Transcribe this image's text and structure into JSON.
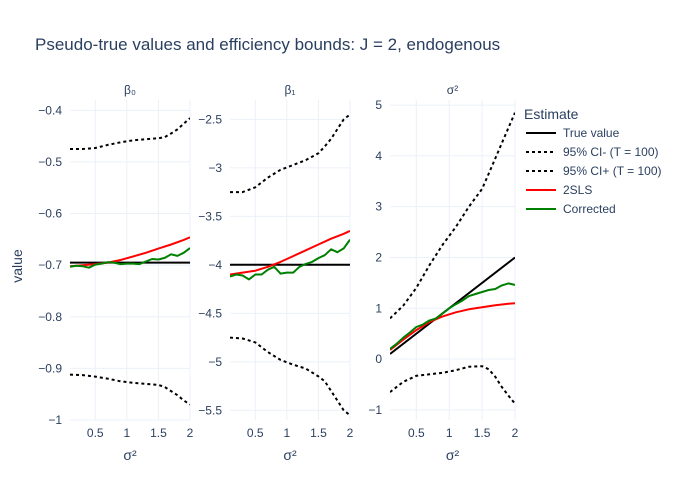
{
  "chart_data": {
    "type": "line",
    "title": "Pseudo-true values and efficiency bounds: J = 2, endogenous",
    "ylabel": "value",
    "legend": {
      "title": "Estimate",
      "placement": "right",
      "entries": [
        {
          "name": "True value",
          "color": "#000000",
          "dash": "solid"
        },
        {
          "name": "95% CI- (T = 100)",
          "color": "#000000",
          "dash": "dot"
        },
        {
          "name": "95% CI+ (T = 100)",
          "color": "#000000",
          "dash": "dot"
        },
        {
          "name": "2SLS",
          "color": "#ff0000",
          "dash": "solid"
        },
        {
          "name": "Corrected",
          "color": "#008000",
          "dash": "solid"
        }
      ]
    },
    "panels": [
      {
        "subtitle": "β₀",
        "xlabel": "σ²",
        "xlim": [
          0.1,
          2
        ],
        "ylim": [
          -1.0,
          -0.38
        ],
        "xticks": [
          0.5,
          1,
          1.5,
          2
        ],
        "xticklabels": [
          "0.5",
          "1",
          "1.5",
          "2"
        ],
        "yticks": [
          -1,
          -0.9,
          -0.8,
          -0.7,
          -0.6,
          -0.5,
          -0.4
        ],
        "yticklabels": [
          "−1",
          "−0.9",
          "−0.8",
          "−0.7",
          "−0.6",
          "−0.5",
          "−0.4"
        ],
        "series": [
          {
            "name": "True value",
            "x": [
              0.1,
              2
            ],
            "y": [
              -0.695,
              -0.695
            ]
          },
          {
            "name": "95% CI- (T = 100)",
            "x": [
              0.1,
              0.3,
              0.5,
              0.7,
              0.9,
              1.1,
              1.3,
              1.5,
              1.6,
              1.7,
              1.8,
              1.9,
              2.0
            ],
            "y": [
              -0.475,
              -0.475,
              -0.473,
              -0.467,
              -0.462,
              -0.458,
              -0.456,
              -0.454,
              -0.452,
              -0.445,
              -0.437,
              -0.426,
              -0.415
            ]
          },
          {
            "name": "95% CI+ (T = 100)",
            "x": [
              0.1,
              0.3,
              0.5,
              0.7,
              0.9,
              1.1,
              1.3,
              1.5,
              1.6,
              1.7,
              1.8,
              1.9,
              2.0
            ],
            "y": [
              -0.912,
              -0.913,
              -0.916,
              -0.92,
              -0.925,
              -0.928,
              -0.93,
              -0.932,
              -0.936,
              -0.944,
              -0.952,
              -0.962,
              -0.97
            ]
          },
          {
            "name": "2SLS",
            "x": [
              0.1,
              0.3,
              0.5,
              0.7,
              0.9,
              1.1,
              1.3,
              1.5,
              1.7,
              1.9,
              2.0
            ],
            "y": [
              -0.702,
              -0.7,
              -0.698,
              -0.695,
              -0.69,
              -0.683,
              -0.676,
              -0.668,
              -0.66,
              -0.651,
              -0.646
            ]
          },
          {
            "name": "Corrected",
            "x": [
              0.1,
              0.2,
              0.3,
              0.4,
              0.5,
              0.6,
              0.7,
              0.8,
              0.9,
              1.0,
              1.1,
              1.2,
              1.3,
              1.4,
              1.5,
              1.6,
              1.7,
              1.8,
              1.9,
              2.0
            ],
            "y": [
              -0.703,
              -0.701,
              -0.702,
              -0.705,
              -0.699,
              -0.697,
              -0.694,
              -0.695,
              -0.698,
              -0.697,
              -0.697,
              -0.698,
              -0.693,
              -0.688,
              -0.689,
              -0.686,
              -0.679,
              -0.682,
              -0.676,
              -0.667
            ]
          }
        ]
      },
      {
        "subtitle": "β₁",
        "xlabel": "σ²",
        "xlim": [
          0.1,
          2
        ],
        "ylim": [
          -5.6,
          -2.3
        ],
        "xticks": [
          0.5,
          1,
          1.5,
          2
        ],
        "xticklabels": [
          "0.5",
          "1",
          "1.5",
          "2"
        ],
        "yticks": [
          -5.5,
          -5,
          -4.5,
          -4,
          -3.5,
          -3,
          -2.5
        ],
        "yticklabels": [
          "−5.5",
          "−5",
          "−4.5",
          "−4",
          "−3.5",
          "−3",
          "−2.5"
        ],
        "series": [
          {
            "name": "True value",
            "x": [
              0.1,
              2
            ],
            "y": [
              -4.0,
              -4.0
            ]
          },
          {
            "name": "95% CI- (T = 100)",
            "x": [
              0.1,
              0.3,
              0.5,
              0.7,
              0.9,
              1.1,
              1.3,
              1.5,
              1.6,
              1.7,
              1.8,
              1.9,
              2.0
            ],
            "y": [
              -3.25,
              -3.25,
              -3.2,
              -3.1,
              -3.02,
              -2.97,
              -2.92,
              -2.85,
              -2.78,
              -2.7,
              -2.6,
              -2.5,
              -2.45
            ]
          },
          {
            "name": "95% CI+ (T = 100)",
            "x": [
              0.1,
              0.3,
              0.5,
              0.7,
              0.9,
              1.1,
              1.3,
              1.5,
              1.6,
              1.7,
              1.8,
              1.9,
              2.0
            ],
            "y": [
              -4.75,
              -4.76,
              -4.8,
              -4.9,
              -4.98,
              -5.03,
              -5.07,
              -5.15,
              -5.2,
              -5.3,
              -5.4,
              -5.5,
              -5.55
            ]
          },
          {
            "name": "2SLS",
            "x": [
              0.1,
              0.3,
              0.5,
              0.7,
              0.9,
              1.1,
              1.3,
              1.5,
              1.7,
              1.9,
              2.0
            ],
            "y": [
              -4.1,
              -4.08,
              -4.06,
              -4.02,
              -3.97,
              -3.91,
              -3.85,
              -3.79,
              -3.73,
              -3.68,
              -3.65
            ]
          },
          {
            "name": "Corrected",
            "x": [
              0.1,
              0.2,
              0.3,
              0.4,
              0.5,
              0.6,
              0.7,
              0.8,
              0.9,
              1.0,
              1.1,
              1.2,
              1.3,
              1.4,
              1.5,
              1.6,
              1.7,
              1.8,
              1.9,
              2.0
            ],
            "y": [
              -4.12,
              -4.1,
              -4.11,
              -4.15,
              -4.1,
              -4.1,
              -4.05,
              -4.02,
              -4.09,
              -4.08,
              -4.08,
              -4.02,
              -3.99,
              -3.97,
              -3.93,
              -3.9,
              -3.84,
              -3.87,
              -3.83,
              -3.74
            ]
          }
        ]
      },
      {
        "subtitle": "σ²",
        "xlabel": "σ²",
        "xlim": [
          0.1,
          2
        ],
        "ylim": [
          -1.2,
          5.1
        ],
        "xticks": [
          0.5,
          1,
          1.5,
          2
        ],
        "xticklabels": [
          "0.5",
          "1",
          "1.5",
          "2"
        ],
        "yticks": [
          -1,
          0,
          1,
          2,
          3,
          4,
          5
        ],
        "yticklabels": [
          "−1",
          "0",
          "1",
          "2",
          "3",
          "4",
          "5"
        ],
        "series": [
          {
            "name": "True value",
            "x": [
              0.1,
              2
            ],
            "y": [
              0.1,
              2.0
            ]
          },
          {
            "name": "95% CI- (T = 100)",
            "x": [
              0.1,
              0.3,
              0.5,
              0.7,
              0.9,
              1.1,
              1.3,
              1.5,
              1.6,
              1.7,
              1.8,
              1.9,
              2.0
            ],
            "y": [
              0.8,
              1.05,
              1.4,
              1.85,
              2.25,
              2.6,
              3.0,
              3.35,
              3.65,
              3.95,
              4.25,
              4.55,
              4.85
            ]
          },
          {
            "name": "95% CI+ (T = 100)",
            "x": [
              0.1,
              0.3,
              0.5,
              0.7,
              0.9,
              1.1,
              1.3,
              1.5,
              1.6,
              1.7,
              1.8,
              1.9,
              2.0
            ],
            "y": [
              -0.65,
              -0.45,
              -0.33,
              -0.3,
              -0.27,
              -0.22,
              -0.15,
              -0.14,
              -0.2,
              -0.35,
              -0.55,
              -0.72,
              -0.88
            ]
          },
          {
            "name": "2SLS",
            "x": [
              0.1,
              0.3,
              0.5,
              0.7,
              0.9,
              1.1,
              1.3,
              1.5,
              1.7,
              1.9,
              2.0
            ],
            "y": [
              0.18,
              0.38,
              0.57,
              0.73,
              0.84,
              0.92,
              0.98,
              1.02,
              1.06,
              1.09,
              1.1
            ]
          },
          {
            "name": "Corrected",
            "x": [
              0.1,
              0.2,
              0.3,
              0.4,
              0.5,
              0.6,
              0.7,
              0.8,
              0.9,
              1.0,
              1.1,
              1.2,
              1.3,
              1.4,
              1.5,
              1.6,
              1.7,
              1.8,
              1.9,
              2.0
            ],
            "y": [
              0.2,
              0.3,
              0.42,
              0.52,
              0.63,
              0.68,
              0.76,
              0.8,
              0.9,
              1.0,
              1.08,
              1.15,
              1.24,
              1.28,
              1.32,
              1.36,
              1.38,
              1.45,
              1.49,
              1.46
            ]
          }
        ]
      }
    ]
  }
}
